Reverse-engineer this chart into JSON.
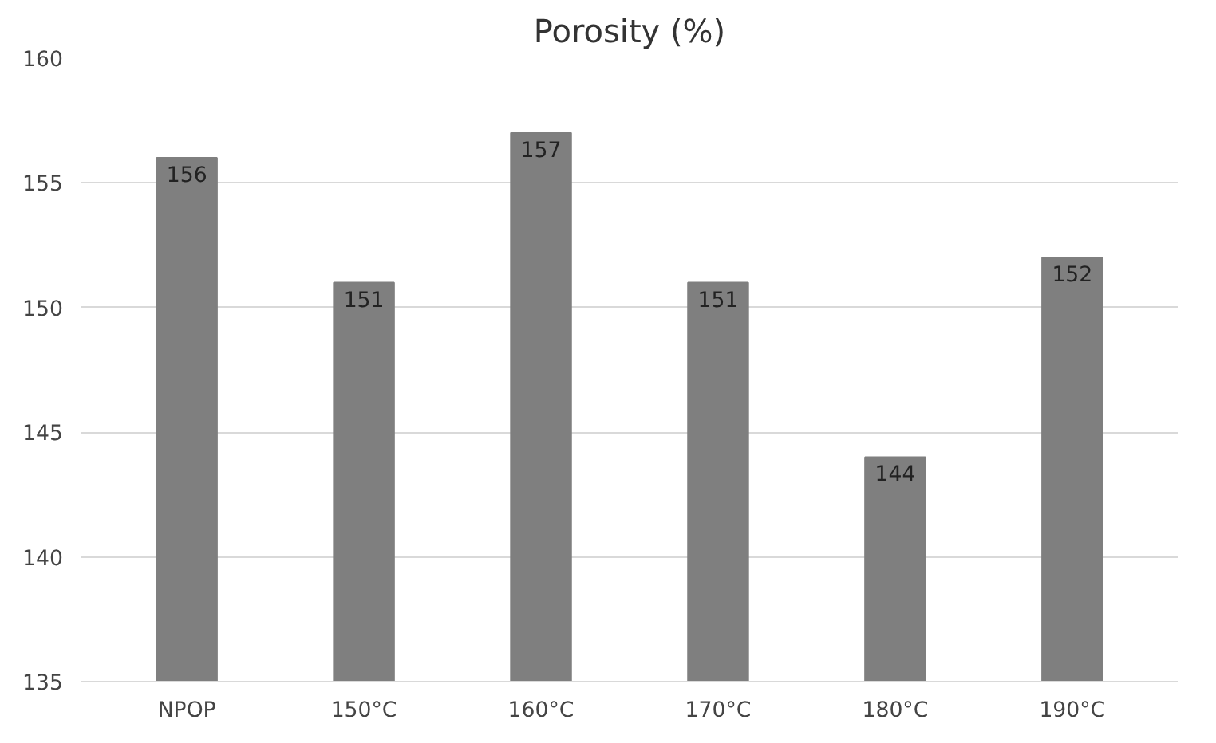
{
  "chart_data": {
    "type": "bar",
    "title": "Porosity (%)",
    "categories": [
      "NPOP",
      "150°C",
      "160°C",
      "170°C",
      "180°C",
      "190°C"
    ],
    "values": [
      156,
      151,
      157,
      151,
      144,
      152
    ],
    "color": "#7f7f7f",
    "ylim": [
      135,
      160
    ],
    "yticks": [
      135,
      140,
      145,
      150,
      155,
      160
    ],
    "grid": "y",
    "data_labels": true
  }
}
